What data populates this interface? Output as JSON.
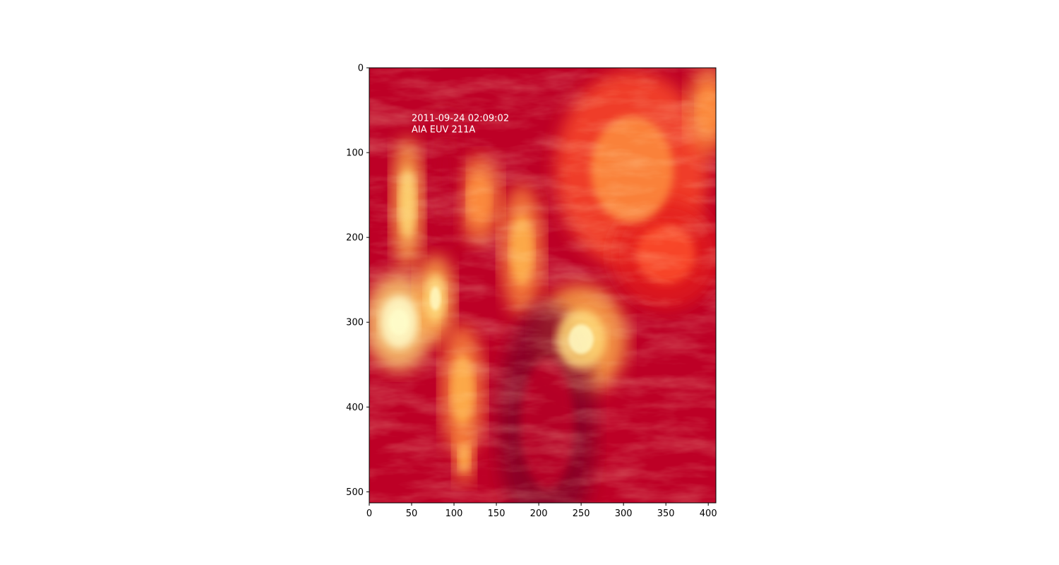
{
  "chart_data": {
    "type": "heatmap",
    "title": "",
    "xlabel": "",
    "ylabel": "",
    "xlim": [
      0,
      409
    ],
    "ylim": [
      513,
      0
    ],
    "y_axis_inverted": true,
    "x_ticks": [
      0,
      50,
      100,
      150,
      200,
      250,
      300,
      350,
      400
    ],
    "y_ticks": [
      0,
      100,
      200,
      300,
      400,
      500
    ],
    "grid": false,
    "colormap": "YlOrRd (high = pale yellow, low = dark red)",
    "colorbar": false,
    "annotation_lines": [
      "2011-09-24 02:09:02",
      "AIA EUV 211A"
    ],
    "annotation_position": [
      50,
      63
    ],
    "features": [
      {
        "kind": "bright loop arcade (west active region)",
        "x": 35,
        "y": 300,
        "rx": 32,
        "ry": 45,
        "level": 0.95
      },
      {
        "kind": "bright loop system",
        "x": 78,
        "y": 272,
        "rx": 18,
        "ry": 40,
        "level": 0.9
      },
      {
        "kind": "bright arcade (east active region)",
        "x": 250,
        "y": 320,
        "rx": 42,
        "ry": 50,
        "level": 0.92
      },
      {
        "kind": "loop bundle",
        "x": 180,
        "y": 215,
        "rx": 20,
        "ry": 60,
        "level": 0.75
      },
      {
        "kind": "loop bundle",
        "x": 45,
        "y": 160,
        "rx": 15,
        "ry": 60,
        "level": 0.8
      },
      {
        "kind": "loop filaments",
        "x": 130,
        "y": 155,
        "rx": 20,
        "ry": 40,
        "level": 0.6
      },
      {
        "kind": "diffuse bright region",
        "x": 310,
        "y": 120,
        "rx": 70,
        "ry": 90,
        "level": 0.5
      },
      {
        "kind": "bright loops",
        "x": 400,
        "y": 50,
        "rx": 20,
        "ry": 40,
        "level": 0.6
      },
      {
        "kind": "faint loops",
        "x": 350,
        "y": 220,
        "rx": 50,
        "ry": 50,
        "level": 0.4
      },
      {
        "kind": "dark lane",
        "x": 210,
        "y": 420,
        "rx": 45,
        "ry": 110,
        "level": 0.08
      },
      {
        "kind": "dark channel",
        "x": 90,
        "y": 130,
        "rx": 15,
        "ry": 60,
        "level": 0.15
      },
      {
        "kind": "loop feet",
        "x": 110,
        "y": 380,
        "rx": 20,
        "ry": 60,
        "level": 0.7
      },
      {
        "kind": "loop feet",
        "x": 112,
        "y": 460,
        "rx": 10,
        "ry": 25,
        "level": 0.75
      }
    ],
    "palette": {
      "dark": "#800026",
      "mid_dark": "#bd0026",
      "mid": "#e31a1c",
      "mid_light": "#fc4e2a",
      "light": "#fd8d3c",
      "lighter": "#feb24c",
      "pale": "#fed976",
      "palest": "#ffffcc"
    }
  }
}
